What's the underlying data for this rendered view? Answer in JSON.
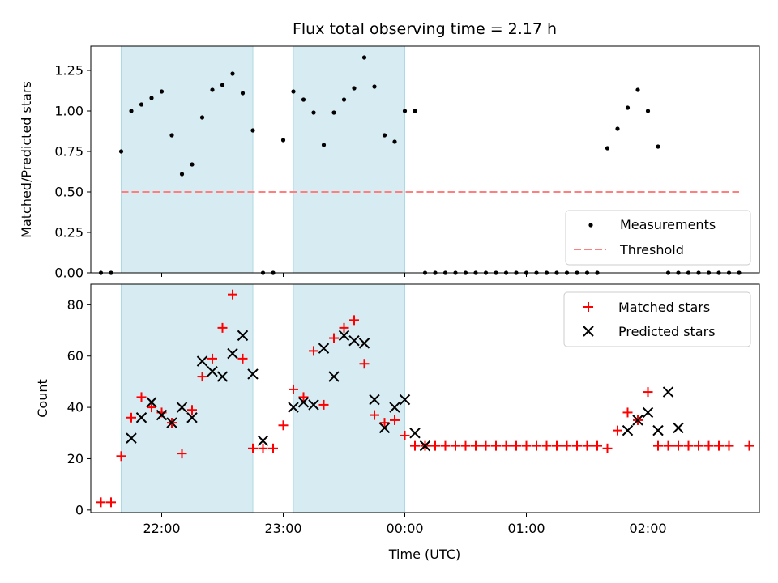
{
  "figure": {
    "title": "Flux total observing time = 2.17 h",
    "xlabel": "Time (UTC)"
  },
  "colors": {
    "band": "#add8e6",
    "measurement": "#000000",
    "threshold": "#ff7f7f",
    "matched": "#ff0000",
    "predicted": "#000000"
  },
  "chart_data": [
    {
      "type": "scatter",
      "ylabel": "Matched/Predicted stars",
      "xlim": [
        "21:25",
        "02:55"
      ],
      "ylim": [
        0,
        1.4
      ],
      "x_ticks": [
        "22:00",
        "23:00",
        "00:00",
        "01:00",
        "02:00"
      ],
      "y_ticks": [
        "0.00",
        "0.25",
        "0.50",
        "0.75",
        "1.00",
        "1.25"
      ],
      "grid": false,
      "legend_position": "lower-right",
      "shaded_intervals": [
        [
          "21:40",
          "22:45"
        ],
        [
          "23:05",
          "00:00"
        ]
      ],
      "series": [
        {
          "name": "Measurements",
          "marker": "dot",
          "points": [
            [
              "21:30",
              0
            ],
            [
              "21:35",
              0
            ],
            [
              "21:40",
              0.75
            ],
            [
              "21:45",
              1.0
            ],
            [
              "21:50",
              1.04
            ],
            [
              "21:55",
              1.08
            ],
            [
              "22:00",
              1.12
            ],
            [
              "22:05",
              0.85
            ],
            [
              "22:10",
              0.61
            ],
            [
              "22:15",
              0.67
            ],
            [
              "22:20",
              0.96
            ],
            [
              "22:25",
              1.13
            ],
            [
              "22:30",
              1.16
            ],
            [
              "22:35",
              1.23
            ],
            [
              "22:40",
              1.11
            ],
            [
              "22:45",
              0.88
            ],
            [
              "22:50",
              0
            ],
            [
              "22:55",
              0
            ],
            [
              "23:00",
              0.82
            ],
            [
              "23:05",
              1.12
            ],
            [
              "23:10",
              1.07
            ],
            [
              "23:15",
              0.99
            ],
            [
              "23:20",
              0.79
            ],
            [
              "23:25",
              0.99
            ],
            [
              "23:30",
              1.07
            ],
            [
              "23:35",
              1.14
            ],
            [
              "23:40",
              1.33
            ],
            [
              "23:45",
              1.15
            ],
            [
              "23:50",
              0.85
            ],
            [
              "23:55",
              0.81
            ],
            [
              "00:00",
              1.0
            ],
            [
              "00:05",
              1.0
            ],
            [
              "00:10",
              0
            ],
            [
              "00:15",
              0
            ],
            [
              "00:20",
              0
            ],
            [
              "00:25",
              0
            ],
            [
              "00:30",
              0
            ],
            [
              "00:35",
              0
            ],
            [
              "00:40",
              0
            ],
            [
              "00:45",
              0
            ],
            [
              "00:50",
              0
            ],
            [
              "00:55",
              0
            ],
            [
              "01:00",
              0
            ],
            [
              "01:05",
              0
            ],
            [
              "01:10",
              0
            ],
            [
              "01:15",
              0
            ],
            [
              "01:20",
              0
            ],
            [
              "01:25",
              0
            ],
            [
              "01:30",
              0
            ],
            [
              "01:35",
              0
            ],
            [
              "01:40",
              0.77
            ],
            [
              "01:45",
              0.89
            ],
            [
              "01:50",
              1.02
            ],
            [
              "01:55",
              1.13
            ],
            [
              "02:00",
              1.0
            ],
            [
              "02:05",
              0.78
            ],
            [
              "02:10",
              0
            ],
            [
              "02:15",
              0
            ],
            [
              "02:20",
              0
            ],
            [
              "02:25",
              0
            ],
            [
              "02:30",
              0
            ],
            [
              "02:35",
              0
            ],
            [
              "02:40",
              0
            ],
            [
              "02:45",
              0
            ]
          ]
        },
        {
          "name": "Threshold",
          "marker": "dashed-line",
          "points": [
            [
              "21:40",
              0.5
            ],
            [
              "02:45",
              0.5
            ]
          ]
        }
      ]
    },
    {
      "type": "scatter",
      "ylabel": "Count",
      "xlim": [
        "21:25",
        "02:55"
      ],
      "ylim": [
        -1,
        88
      ],
      "x_ticks": [
        "22:00",
        "23:00",
        "00:00",
        "01:00",
        "02:00"
      ],
      "y_ticks": [
        "0",
        "20",
        "40",
        "60",
        "80"
      ],
      "grid": false,
      "legend_position": "upper-right",
      "shaded_intervals": [
        [
          "21:40",
          "22:45"
        ],
        [
          "23:05",
          "00:00"
        ]
      ],
      "series": [
        {
          "name": "Matched stars",
          "marker": "plus",
          "points": [
            [
              "21:30",
              3
            ],
            [
              "21:35",
              3
            ],
            [
              "21:40",
              21
            ],
            [
              "21:45",
              36
            ],
            [
              "21:50",
              44
            ],
            [
              "21:55",
              40
            ],
            [
              "22:00",
              38
            ],
            [
              "22:05",
              34
            ],
            [
              "22:10",
              22
            ],
            [
              "22:15",
              39
            ],
            [
              "22:20",
              52
            ],
            [
              "22:25",
              59
            ],
            [
              "22:30",
              71
            ],
            [
              "22:35",
              84
            ],
            [
              "22:40",
              59
            ],
            [
              "22:45",
              24
            ],
            [
              "22:50",
              24
            ],
            [
              "22:55",
              24
            ],
            [
              "23:00",
              33
            ],
            [
              "23:05",
              47
            ],
            [
              "23:10",
              44
            ],
            [
              "23:15",
              62
            ],
            [
              "23:20",
              41
            ],
            [
              "23:25",
              67
            ],
            [
              "23:30",
              71
            ],
            [
              "23:35",
              74
            ],
            [
              "23:40",
              57
            ],
            [
              "23:45",
              37
            ],
            [
              "23:50",
              34
            ],
            [
              "23:55",
              35
            ],
            [
              "00:00",
              29
            ],
            [
              "00:05",
              25
            ],
            [
              "00:10",
              25
            ],
            [
              "00:15",
              25
            ],
            [
              "00:20",
              25
            ],
            [
              "00:25",
              25
            ],
            [
              "00:30",
              25
            ],
            [
              "00:35",
              25
            ],
            [
              "00:40",
              25
            ],
            [
              "00:45",
              25
            ],
            [
              "00:50",
              25
            ],
            [
              "00:55",
              25
            ],
            [
              "01:00",
              25
            ],
            [
              "01:05",
              25
            ],
            [
              "01:10",
              25
            ],
            [
              "01:15",
              25
            ],
            [
              "01:20",
              25
            ],
            [
              "01:25",
              25
            ],
            [
              "01:30",
              25
            ],
            [
              "01:35",
              25
            ],
            [
              "01:40",
              24
            ],
            [
              "01:45",
              31
            ],
            [
              "01:50",
              38
            ],
            [
              "01:55",
              35
            ],
            [
              "02:00",
              46
            ],
            [
              "02:05",
              25
            ],
            [
              "02:10",
              25
            ],
            [
              "02:15",
              25
            ],
            [
              "02:20",
              25
            ],
            [
              "02:25",
              25
            ],
            [
              "02:30",
              25
            ],
            [
              "02:35",
              25
            ],
            [
              "02:40",
              25
            ],
            [
              "02:50",
              25
            ]
          ]
        },
        {
          "name": "Predicted stars",
          "marker": "x",
          "points": [
            [
              "21:45",
              28
            ],
            [
              "21:50",
              36
            ],
            [
              "21:55",
              42
            ],
            [
              "22:00",
              37
            ],
            [
              "22:05",
              34
            ],
            [
              "22:10",
              40
            ],
            [
              "22:15",
              36
            ],
            [
              "22:20",
              58
            ],
            [
              "22:25",
              54
            ],
            [
              "22:30",
              52
            ],
            [
              "22:35",
              61
            ],
            [
              "22:40",
              68
            ],
            [
              "22:45",
              53
            ],
            [
              "22:50",
              27
            ],
            [
              "23:05",
              40
            ],
            [
              "23:10",
              42
            ],
            [
              "23:15",
              41
            ],
            [
              "23:20",
              63
            ],
            [
              "23:25",
              52
            ],
            [
              "23:30",
              68
            ],
            [
              "23:35",
              66
            ],
            [
              "23:40",
              65
            ],
            [
              "23:45",
              43
            ],
            [
              "23:50",
              32
            ],
            [
              "23:55",
              40
            ],
            [
              "00:00",
              43
            ],
            [
              "00:05",
              30
            ],
            [
              "00:10",
              25
            ],
            [
              "01:50",
              31
            ],
            [
              "01:55",
              35
            ],
            [
              "02:00",
              38
            ],
            [
              "02:05",
              31
            ],
            [
              "02:10",
              46
            ],
            [
              "02:15",
              32
            ]
          ]
        }
      ]
    }
  ]
}
